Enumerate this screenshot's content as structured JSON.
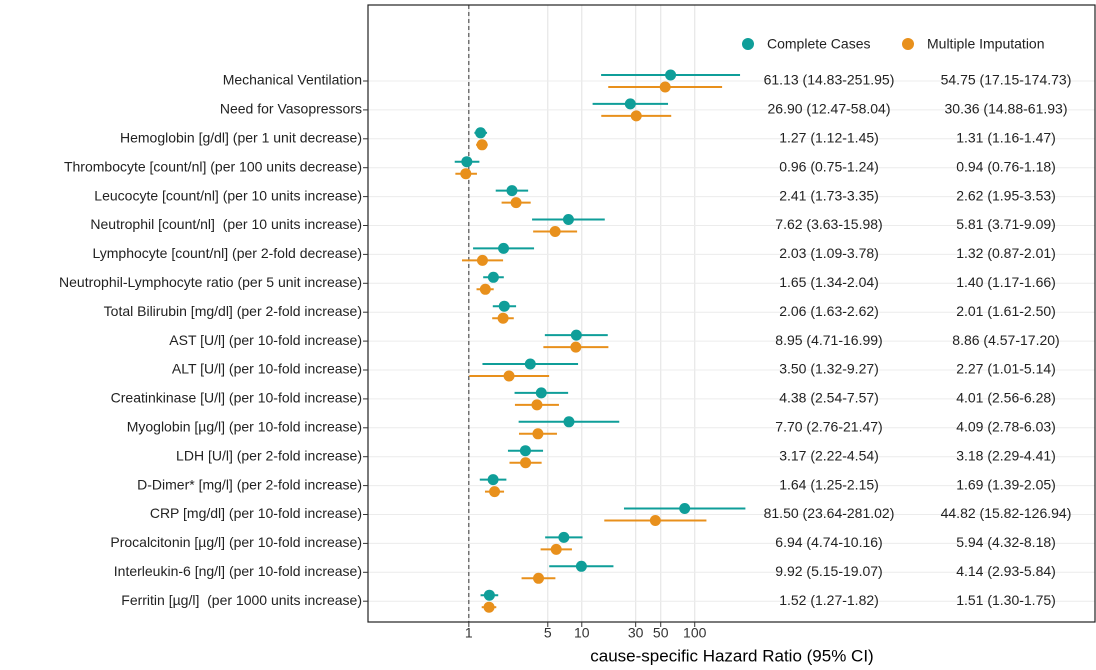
{
  "chart_data": {
    "type": "forest",
    "xlabel": "cause-specific Hazard Ratio (95% CI)",
    "log_x": true,
    "grid": true,
    "reference_line": 1,
    "legend": "top-right",
    "xlim": [
      0.128,
      350000
    ],
    "xticks": [
      1,
      5,
      10,
      30,
      50,
      100
    ],
    "categories": [
      "Mechanical Ventilation",
      "Need for Vasopressors",
      "Hemoglobin [g/dl] (per 1 unit decrease)",
      "Thrombocyte [count/nl] (per 100 units decrease)",
      "Leucocyte [count/nl] (per 10 units increase)",
      "Neutrophil [count/nl]  (per 10 units increase)",
      "Lymphocyte [count/nl] (per 2-fold decrease)",
      "Neutrophil-Lymphocyte ratio (per 5 unit increase)",
      "Total Bilirubin [mg/dl] (per 2-fold increase)",
      "AST [U/l] (per 10-fold increase)",
      "ALT [U/l] (per 10-fold increase)",
      "Creatinkinase [U/l] (per 10-fold increase)",
      "Myoglobin [µg/l] (per 10-fold increase)",
      "LDH [U/l] (per 2-fold increase)",
      "D-Dimer* [mg/l] (per 2-fold increase)",
      "CRP [mg/dl] (per 10-fold increase)",
      "Procalcitonin [µg/l] (per 10-fold increase)",
      "Interleukin-6 [ng/l] (per 10-fold increase)",
      "Ferritin [µg/l]  (per 1000 units increase)"
    ],
    "series": [
      {
        "name": "Complete Cases",
        "color": "#0f9e99",
        "values": [
          61.13,
          26.9,
          1.27,
          0.96,
          2.41,
          7.62,
          2.03,
          1.65,
          2.06,
          8.95,
          3.5,
          4.38,
          7.7,
          3.17,
          1.64,
          81.5,
          6.94,
          9.92,
          1.52
        ],
        "lower": [
          14.83,
          12.47,
          1.12,
          0.75,
          1.73,
          3.63,
          1.09,
          1.34,
          1.63,
          4.71,
          1.32,
          2.54,
          2.76,
          2.22,
          1.25,
          23.64,
          4.74,
          5.15,
          1.27
        ],
        "upper": [
          251.95,
          58.04,
          1.45,
          1.24,
          3.35,
          15.98,
          3.78,
          2.04,
          2.62,
          16.99,
          9.27,
          7.57,
          21.47,
          4.54,
          2.15,
          281.02,
          10.16,
          19.07,
          1.82
        ],
        "value_labels": [
          "61.13 (14.83-251.95)",
          "26.90 (12.47-58.04)",
          "1.27 (1.12-1.45)",
          "0.96 (0.75-1.24)",
          "2.41 (1.73-3.35)",
          "7.62 (3.63-15.98)",
          "2.03 (1.09-3.78)",
          "1.65 (1.34-2.04)",
          "2.06 (1.63-2.62)",
          "8.95 (4.71-16.99)",
          "3.50 (1.32-9.27)",
          "4.38 (2.54-7.57)",
          "7.70 (2.76-21.47)",
          "3.17 (2.22-4.54)",
          "1.64 (1.25-2.15)",
          "81.50 (23.64-281.02)",
          "6.94 (4.74-10.16)",
          "9.92 (5.15-19.07)",
          "1.52 (1.27-1.82)"
        ]
      },
      {
        "name": "Multiple Imputation",
        "color": "#e8901c",
        "values": [
          54.75,
          30.36,
          1.31,
          0.94,
          2.62,
          5.81,
          1.32,
          1.4,
          2.01,
          8.86,
          2.27,
          4.01,
          4.09,
          3.18,
          1.69,
          44.82,
          5.94,
          4.14,
          1.51
        ],
        "lower": [
          17.15,
          14.88,
          1.16,
          0.76,
          1.95,
          3.71,
          0.87,
          1.17,
          1.61,
          4.57,
          1.01,
          2.56,
          2.78,
          2.29,
          1.39,
          15.82,
          4.32,
          2.93,
          1.3
        ],
        "upper": [
          174.73,
          61.93,
          1.47,
          1.18,
          3.53,
          9.09,
          2.01,
          1.66,
          2.5,
          17.2,
          5.14,
          6.28,
          6.03,
          4.41,
          2.05,
          126.94,
          8.18,
          5.84,
          1.75
        ],
        "value_labels": [
          "54.75 (17.15-174.73)",
          "30.36 (14.88-61.93)",
          "1.31 (1.16-1.47)",
          "0.94 (0.76-1.18)",
          "2.62 (1.95-3.53)",
          "5.81 (3.71-9.09)",
          "1.32 (0.87-2.01)",
          "1.40 (1.17-1.66)",
          "2.01 (1.61-2.50)",
          "8.86 (4.57-17.20)",
          "2.27 (1.01-5.14)",
          "4.01 (2.56-6.28)",
          "4.09 (2.78-6.03)",
          "3.18 (2.29-4.41)",
          "1.69 (1.39-2.05)",
          "44.82 (15.82-126.94)",
          "5.94 (4.32-8.18)",
          "4.14 (2.93-5.84)",
          "1.51 (1.30-1.75)"
        ]
      }
    ]
  }
}
